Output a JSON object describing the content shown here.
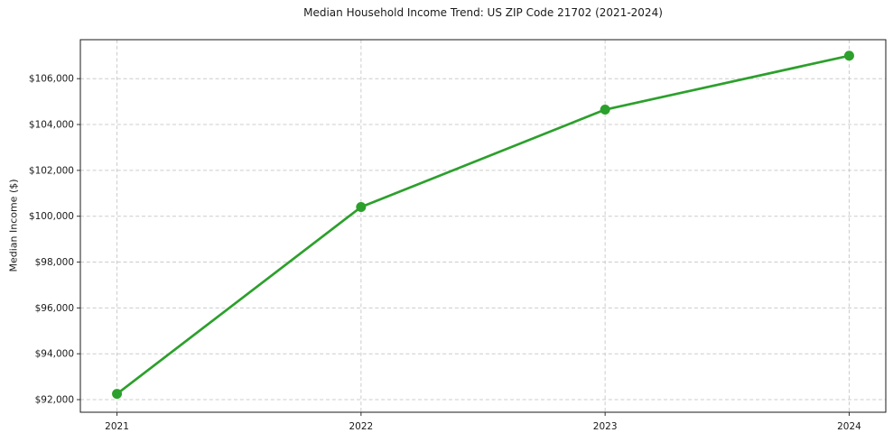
{
  "chart_data": {
    "type": "line",
    "title": "Median Household Income Trend: US ZIP Code 21702 (2021-2024)",
    "xlabel": "",
    "ylabel": "Median Income ($)",
    "categories": [
      "2021",
      "2022",
      "2023",
      "2024"
    ],
    "series": [
      {
        "name": "Median Household Income",
        "values": [
          92250,
          100400,
          104650,
          107000
        ]
      }
    ],
    "y_ticks": [
      92000,
      94000,
      96000,
      98000,
      100000,
      102000,
      104000,
      106000
    ],
    "y_tick_labels": [
      "$92,000",
      "$94,000",
      "$96,000",
      "$98,000",
      "$100,000",
      "$102,000",
      "$104,000",
      "$106,000"
    ],
    "xlim": [
      2020.85,
      2024.15
    ],
    "ylim": [
      91450,
      107700
    ],
    "grid": true,
    "grid_style": "dashed",
    "legend": "none",
    "colors": {
      "line": "#2ca02c",
      "marker": "#2ca02c",
      "grid": "#cccccc",
      "spine": "#1a1a1a",
      "tick": "#333333",
      "text": "#1a1a1a",
      "background": "#ffffff"
    }
  }
}
